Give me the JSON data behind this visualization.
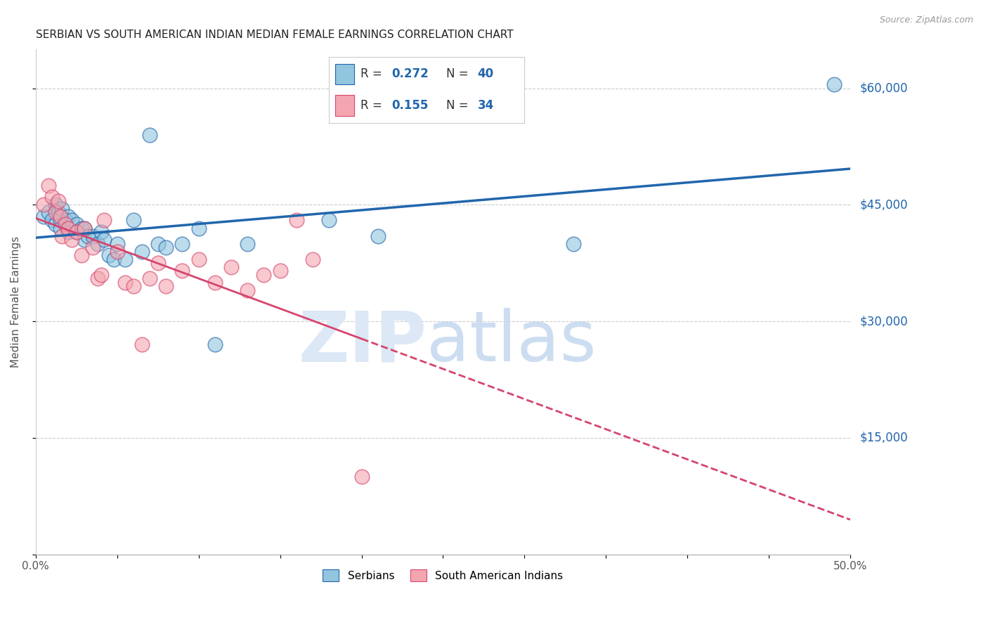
{
  "title": "SERBIAN VS SOUTH AMERICAN INDIAN MEDIAN FEMALE EARNINGS CORRELATION CHART",
  "source": "Source: ZipAtlas.com",
  "ylabel": "Median Female Earnings",
  "xlim": [
    0.0,
    0.5
  ],
  "ylim": [
    0,
    65000
  ],
  "yticks": [
    0,
    15000,
    30000,
    45000,
    60000
  ],
  "ytick_labels": [
    "",
    "$15,000",
    "$30,000",
    "$45,000",
    "$60,000"
  ],
  "xticks": [
    0.0,
    0.05,
    0.1,
    0.15,
    0.2,
    0.25,
    0.3,
    0.35,
    0.4,
    0.45,
    0.5
  ],
  "xtick_labels": [
    "0.0%",
    "",
    "",
    "",
    "",
    "",
    "",
    "",
    "",
    "",
    "50.0%"
  ],
  "blue_color": "#92c5de",
  "pink_color": "#f4a6b0",
  "line_blue": "#2166ac",
  "line_pink": "#d6456e",
  "serbian_x": [
    0.005,
    0.008,
    0.01,
    0.012,
    0.012,
    0.014,
    0.015,
    0.015,
    0.016,
    0.018,
    0.02,
    0.02,
    0.022,
    0.025,
    0.025,
    0.028,
    0.03,
    0.03,
    0.032,
    0.035,
    0.038,
    0.04,
    0.042,
    0.045,
    0.048,
    0.05,
    0.055,
    0.06,
    0.065,
    0.07,
    0.075,
    0.08,
    0.09,
    0.1,
    0.11,
    0.13,
    0.18,
    0.21,
    0.33,
    0.49
  ],
  "serbian_y": [
    43500,
    44000,
    43000,
    45000,
    42500,
    44000,
    43000,
    42000,
    44500,
    43000,
    43500,
    41500,
    43000,
    42500,
    41500,
    42000,
    42000,
    40500,
    41000,
    41000,
    40000,
    41500,
    40500,
    38500,
    38000,
    40000,
    38000,
    43000,
    39000,
    54000,
    40000,
    39500,
    40000,
    42000,
    27000,
    40000,
    43000,
    41000,
    40000,
    60500
  ],
  "sai_x": [
    0.005,
    0.008,
    0.01,
    0.012,
    0.014,
    0.015,
    0.016,
    0.018,
    0.02,
    0.022,
    0.025,
    0.028,
    0.03,
    0.035,
    0.038,
    0.04,
    0.042,
    0.05,
    0.055,
    0.06,
    0.065,
    0.07,
    0.075,
    0.08,
    0.09,
    0.1,
    0.11,
    0.12,
    0.13,
    0.14,
    0.15,
    0.16,
    0.17,
    0.2
  ],
  "sai_y": [
    45000,
    47500,
    46000,
    44000,
    45500,
    43500,
    41000,
    42500,
    42000,
    40500,
    41500,
    38500,
    42000,
    39500,
    35500,
    36000,
    43000,
    39000,
    35000,
    34500,
    27000,
    35500,
    37500,
    34500,
    36500,
    38000,
    35000,
    37000,
    34000,
    36000,
    36500,
    43000,
    38000,
    10000
  ]
}
